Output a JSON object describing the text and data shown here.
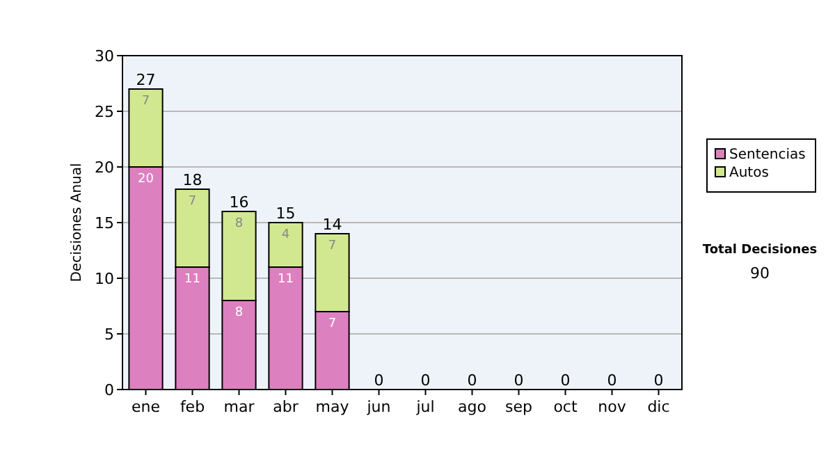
{
  "chart_data": {
    "type": "bar",
    "stacked": true,
    "ylabel": "Decisiones Anual",
    "categories": [
      "ene",
      "feb",
      "mar",
      "abr",
      "may",
      "jun",
      "jul",
      "ago",
      "sep",
      "oct",
      "nov",
      "dic"
    ],
    "series": [
      {
        "name": "Sentencias",
        "color": "#dd80c0",
        "values": [
          20,
          11,
          8,
          11,
          7,
          0,
          0,
          0,
          0,
          0,
          0,
          0
        ],
        "value_labels": [
          "20",
          "11",
          "8",
          "11",
          "7",
          null,
          null,
          null,
          null,
          null,
          null,
          null
        ]
      },
      {
        "name": "Autos",
        "color": "#d2e890",
        "values": [
          7,
          7,
          8,
          4,
          7,
          0,
          0,
          0,
          0,
          0,
          0,
          0
        ],
        "value_labels": [
          "7",
          "7",
          "8",
          "4",
          "7",
          null,
          null,
          null,
          null,
          null,
          null,
          null
        ]
      }
    ],
    "totals": [
      "27",
      "18",
      "16",
      "15",
      "14",
      "0",
      "0",
      "0",
      "0",
      "0",
      "0",
      "0"
    ],
    "ylim": [
      0,
      30
    ],
    "yticks": [
      0,
      5,
      10,
      15,
      20,
      25,
      30
    ],
    "grid": "y",
    "legend": "right",
    "annotations": [
      "Total Decisiones",
      "90"
    ]
  }
}
